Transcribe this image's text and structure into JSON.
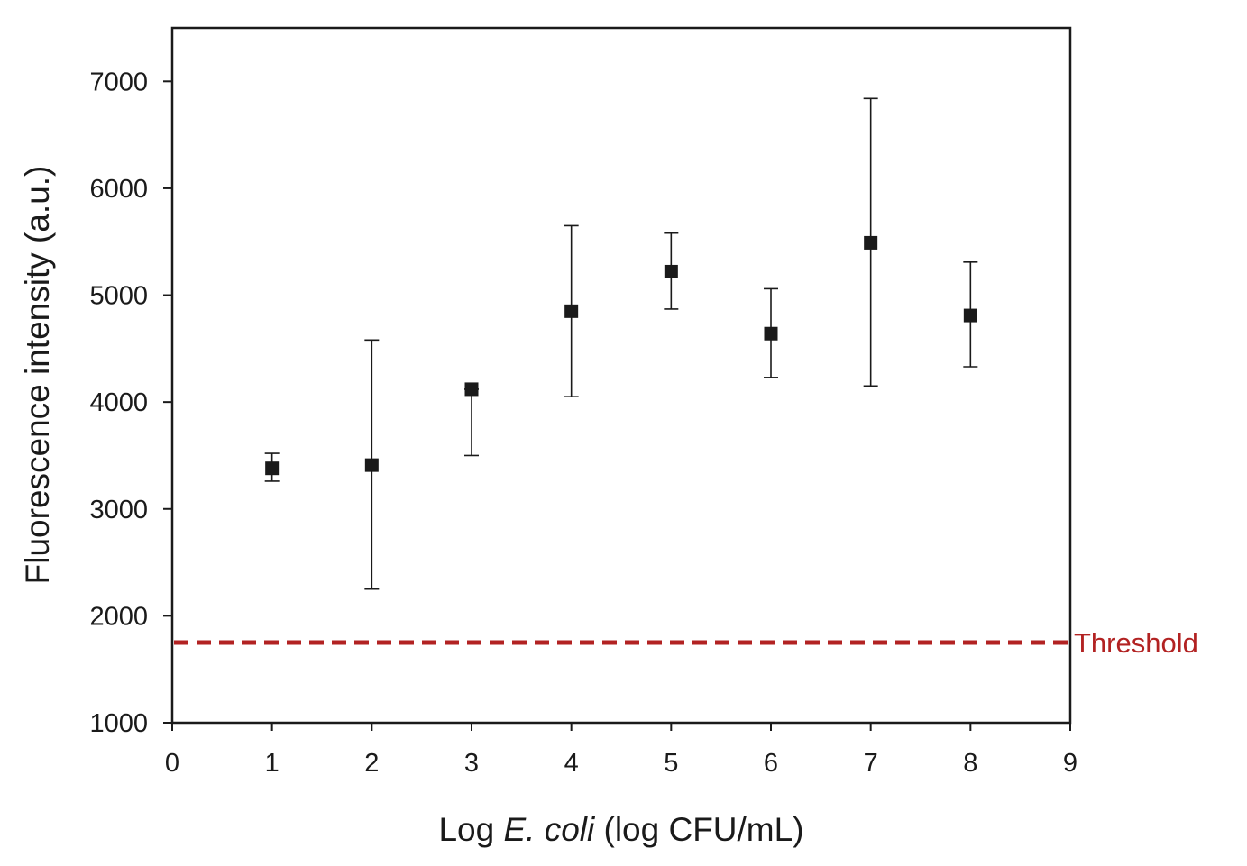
{
  "chart_data": {
    "type": "scatter",
    "title": "",
    "xlabel_parts": [
      "Log ",
      "E. coli",
      " (log CFU/mL)"
    ],
    "ylabel": "Fluorescence intensity (a.u.)",
    "xlim": [
      0,
      9
    ],
    "ylim": [
      1000,
      7500
    ],
    "x_ticks": [
      0,
      1,
      2,
      3,
      4,
      5,
      6,
      7,
      8,
      9
    ],
    "y_ticks": [
      1000,
      2000,
      3000,
      4000,
      5000,
      6000,
      7000
    ],
    "grid": false,
    "legend": "none",
    "series": [
      {
        "marker": "square",
        "color": "#1a1a1a",
        "points": [
          {
            "x": 1,
            "y": 3380,
            "low": 3260,
            "high": 3520
          },
          {
            "x": 2,
            "y": 3410,
            "low": 2250,
            "high": 4580
          },
          {
            "x": 3,
            "y": 4120,
            "low": 3500,
            "high": 4120
          },
          {
            "x": 4,
            "y": 4850,
            "low": 4050,
            "high": 5650
          },
          {
            "x": 5,
            "y": 5220,
            "low": 4870,
            "high": 5580
          },
          {
            "x": 6,
            "y": 4640,
            "low": 4230,
            "high": 5060
          },
          {
            "x": 7,
            "y": 5490,
            "low": 4150,
            "high": 6840
          },
          {
            "x": 8,
            "y": 4810,
            "low": 4330,
            "high": 5310
          }
        ]
      }
    ],
    "threshold": {
      "value": 1750,
      "label": "Threshold",
      "color": "#b22222",
      "style": "dashed"
    }
  }
}
